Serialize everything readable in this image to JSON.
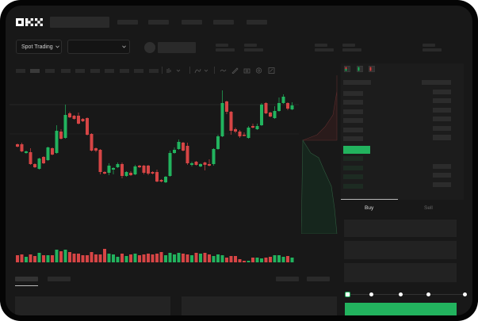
{
  "header": {
    "logo": "OKX"
  },
  "toolbar": {
    "market_select": "Spot Trading",
    "pair_select": ""
  },
  "trade": {
    "tabs": [
      {
        "label": "Buy",
        "active": true
      },
      {
        "label": "Sell",
        "active": false
      }
    ],
    "slider_level": 0,
    "slider_marks": 5
  },
  "colors": {
    "up": "#22b35e",
    "down": "#d64545",
    "background": "#181818",
    "placeholder": "#2a2a2a"
  },
  "chart_data": {
    "type": "candlestick",
    "candles": [
      [
        58,
        55,
        59,
        54
      ],
      [
        58,
        49,
        60,
        48
      ],
      [
        47,
        49,
        50,
        46
      ],
      [
        48,
        33,
        53,
        32
      ],
      [
        33,
        29,
        34,
        28
      ],
      [
        27,
        40,
        41,
        26
      ],
      [
        42,
        34,
        43,
        33
      ],
      [
        38,
        54,
        55,
        37
      ],
      [
        53,
        45,
        54,
        44
      ],
      [
        47,
        75,
        82,
        46
      ],
      [
        74,
        65,
        77,
        64
      ],
      [
        66,
        95,
        108,
        65
      ],
      [
        97,
        92,
        99,
        91
      ],
      [
        94,
        90,
        95,
        89
      ],
      [
        94,
        84,
        98,
        83
      ],
      [
        90,
        87,
        91,
        86
      ],
      [
        91,
        70,
        92,
        69
      ],
      [
        71,
        50,
        72,
        49
      ],
      [
        53,
        50,
        54,
        48
      ],
      [
        51,
        23,
        52,
        20
      ],
      [
        23,
        21,
        24,
        20
      ],
      [
        22,
        31,
        34,
        19
      ],
      [
        26,
        28,
        29,
        20
      ],
      [
        29,
        33,
        35,
        28
      ],
      [
        33,
        18,
        35,
        15
      ],
      [
        18,
        23,
        24,
        17
      ],
      [
        22,
        19,
        24,
        18
      ],
      [
        20,
        30,
        32,
        19
      ],
      [
        31,
        29,
        32,
        28
      ],
      [
        31,
        22,
        32,
        20
      ],
      [
        31,
        21,
        32,
        19
      ],
      [
        23,
        21,
        24,
        20
      ],
      [
        23,
        11,
        26,
        10
      ],
      [
        13,
        11,
        14,
        10
      ],
      [
        10,
        17,
        18,
        9
      ],
      [
        18,
        47,
        50,
        17
      ],
      [
        47,
        51,
        54,
        46
      ],
      [
        52,
        61,
        64,
        51
      ],
      [
        60,
        50,
        61,
        49
      ],
      [
        56,
        34,
        60,
        32
      ],
      [
        32,
        34,
        36,
        30
      ],
      [
        36,
        32,
        37,
        31
      ],
      [
        30,
        33,
        34,
        29
      ],
      [
        35,
        32,
        36,
        25
      ],
      [
        33,
        31,
        39,
        30
      ],
      [
        33,
        52,
        53,
        31
      ],
      [
        52,
        68,
        70,
        51
      ],
      [
        68,
        110,
        126,
        67
      ],
      [
        112,
        99,
        113,
        96
      ],
      [
        99,
        75,
        100,
        70
      ],
      [
        77,
        74,
        79,
        72
      ],
      [
        74,
        68,
        76,
        66
      ],
      [
        70,
        69,
        73,
        68
      ],
      [
        66,
        79,
        81,
        65
      ],
      [
        81,
        79,
        84,
        78
      ],
      [
        77,
        81,
        84,
        76
      ],
      [
        82,
        108,
        110,
        81
      ],
      [
        110,
        97,
        111,
        96
      ],
      [
        98,
        93,
        99,
        92
      ],
      [
        91,
        100,
        106,
        90
      ],
      [
        100,
        110,
        117,
        99
      ],
      [
        110,
        118,
        121,
        109
      ],
      [
        110,
        103,
        111,
        101
      ],
      [
        102,
        107,
        111,
        101
      ]
    ],
    "volumes": [
      9,
      10,
      7,
      10,
      8,
      12,
      9,
      9,
      9,
      16,
      14,
      16,
      13,
      11,
      11,
      9,
      9,
      13,
      10,
      10,
      17,
      11,
      10,
      7,
      11,
      8,
      10,
      11,
      9,
      10,
      11,
      10,
      11,
      13,
      9,
      12,
      10,
      12,
      11,
      10,
      9,
      12,
      11,
      12,
      10,
      8,
      10,
      9,
      6,
      8,
      8,
      4,
      2,
      2,
      6,
      6,
      5,
      6,
      7,
      9,
      9,
      7,
      8,
      6
    ],
    "candle_format": [
      "open",
      "close",
      "high",
      "low"
    ]
  }
}
